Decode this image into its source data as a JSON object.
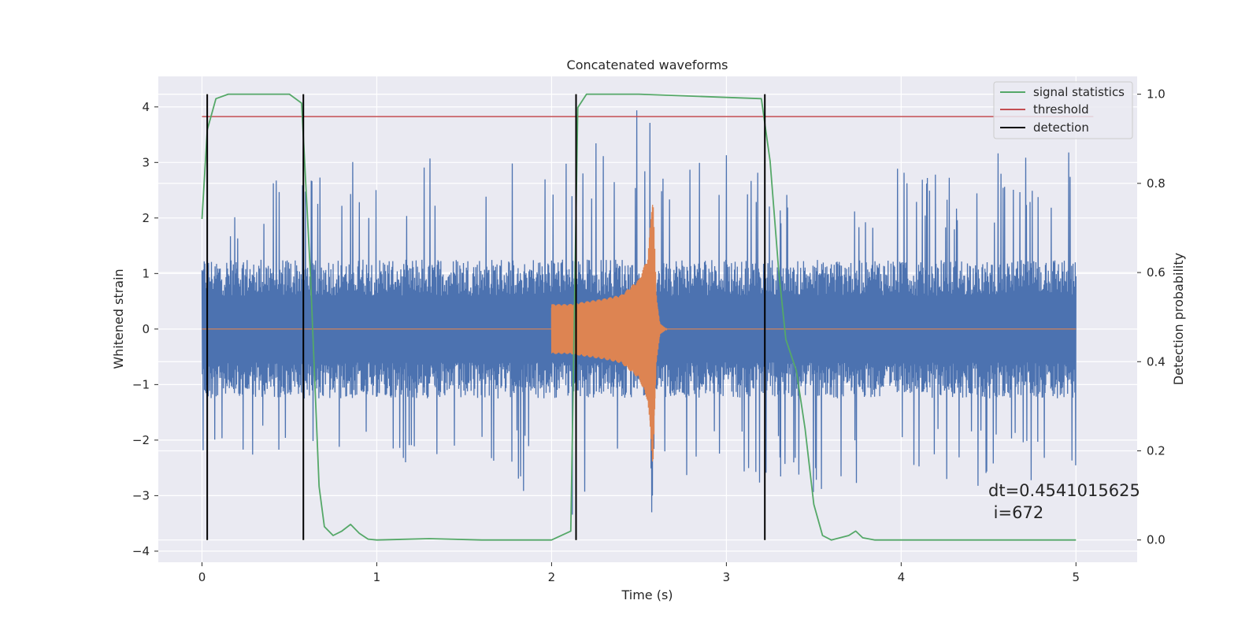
{
  "chart_data": {
    "type": "line",
    "title": "Concatenated waveforms",
    "xlabel": "Time (s)",
    "ylabel": "Whitened strain",
    "ylabel_right": "Detection probability",
    "xlim": [
      -0.25,
      5.35
    ],
    "ylim": [
      -4.2,
      4.55
    ],
    "ylim_right": [
      -0.05,
      1.04
    ],
    "xticks": [
      0,
      1,
      2,
      3,
      4,
      5
    ],
    "yticks": [
      -4,
      -3,
      -2,
      -1,
      0,
      1,
      2,
      3,
      4
    ],
    "yticks_right": [
      0.0,
      0.2,
      0.4,
      0.6,
      0.8,
      1.0
    ],
    "xtick_labels": [
      "0",
      "1",
      "2",
      "3",
      "4",
      "5"
    ],
    "ytick_labels": [
      "−4",
      "−3",
      "−2",
      "−1",
      "0",
      "1",
      "2",
      "3",
      "4"
    ],
    "ytick_right_labels": [
      "0.0",
      "0.2",
      "0.4",
      "0.6",
      "0.8",
      "1.0"
    ],
    "grid": true,
    "legend_position": "top-right",
    "legend": [
      {
        "label": "signal statistics",
        "color": "#55a868"
      },
      {
        "label": "threshold",
        "color": "#c44e52"
      },
      {
        "label": "detection",
        "color": "#000000"
      }
    ],
    "colors": {
      "strain": "#4c72b0",
      "template": "#dd8452",
      "signal_statistics": "#55a868",
      "threshold": "#c44e52",
      "detection": "#000000",
      "background": "#eaeaf2"
    },
    "strain_envelope": {
      "x": [
        0,
        0.25,
        0.5,
        0.75,
        1.0,
        1.25,
        1.5,
        1.75,
        2.0,
        2.25,
        2.5,
        2.75,
        3.0,
        3.25,
        3.5,
        3.75,
        4.0,
        4.25,
        4.5,
        4.75,
        5.0
      ],
      "ymax": [
        2.0,
        2.7,
        2.7,
        3.1,
        3.0,
        3.2,
        3.3,
        3.0,
        3.3,
        3.4,
        4.2,
        3.2,
        3.3,
        3.0,
        2.9,
        3.0,
        3.1,
        2.9,
        3.2,
        3.1,
        3.4
      ],
      "ymin": [
        -2.5,
        -2.6,
        -2.4,
        -2.3,
        -2.3,
        -2.5,
        -2.6,
        -2.5,
        -3.8,
        -3.0,
        -3.4,
        -3.2,
        -3.0,
        -2.8,
        -3.0,
        -2.9,
        -3.1,
        -2.8,
        -2.9,
        -2.9,
        -2.6
      ]
    },
    "template_envelope": {
      "x": [
        2.0,
        2.1,
        2.2,
        2.3,
        2.4,
        2.5,
        2.55,
        2.58,
        2.6,
        2.62,
        2.66
      ],
      "amplitude": [
        0.45,
        0.45,
        0.5,
        0.55,
        0.62,
        0.9,
        1.3,
        2.5,
        0.6,
        0.1,
        0.0
      ]
    },
    "signal_statistics": {
      "x": [
        0,
        0.03,
        0.08,
        0.15,
        0.5,
        0.57,
        0.62,
        0.67,
        0.7,
        0.75,
        0.8,
        0.85,
        0.9,
        0.95,
        1.0,
        1.3,
        1.6,
        2.0,
        2.11,
        2.13,
        2.15,
        2.2,
        2.5,
        3.2,
        3.25,
        3.3,
        3.34,
        3.4,
        3.45,
        3.5,
        3.55,
        3.6,
        3.7,
        3.74,
        3.78,
        3.85,
        4.0,
        5.0
      ],
      "y": [
        0.72,
        0.92,
        0.99,
        1.0,
        1.0,
        0.98,
        0.6,
        0.12,
        0.03,
        0.01,
        0.02,
        0.035,
        0.015,
        0.002,
        0.0,
        0.003,
        0.0,
        0.0,
        0.02,
        0.5,
        0.97,
        1.0,
        1.0,
        0.99,
        0.85,
        0.6,
        0.45,
        0.38,
        0.25,
        0.08,
        0.01,
        0.0,
        0.01,
        0.02,
        0.005,
        0.0,
        0.0,
        0.0
      ]
    },
    "threshold": {
      "x": [
        0,
        5
      ],
      "y": 0.95
    },
    "detections": [
      0.03,
      0.58,
      2.14,
      3.22
    ],
    "annotation": [
      "dt=0.4541015625",
      " i=672"
    ]
  }
}
